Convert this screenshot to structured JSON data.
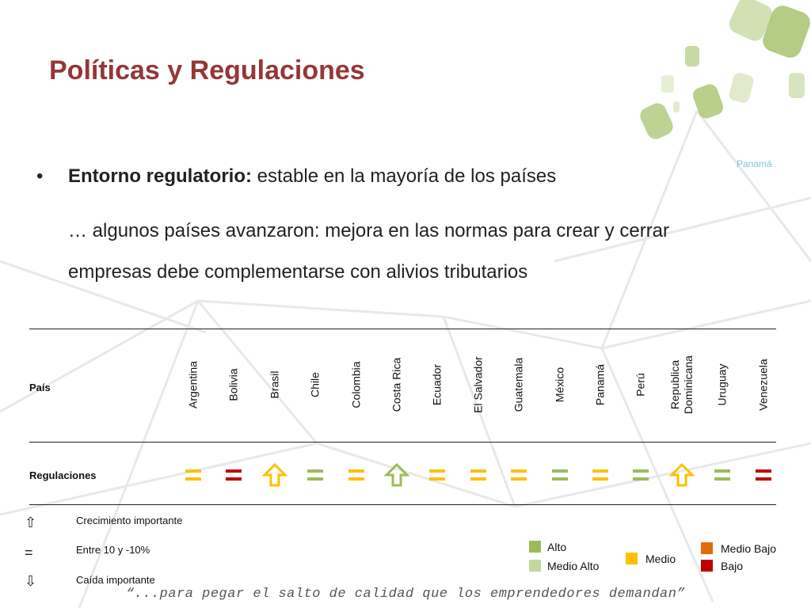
{
  "slide": {
    "title": "Políticas y Regulaciones",
    "ghost_text": "Panamá"
  },
  "bullet": {
    "marker": "•",
    "heading": "Entorno regulatorio:",
    "text": " estable en la mayoría de los países",
    "paragraph": "… algunos países avanzaron: mejora en las normas para crear y cerrar empresas debe complementarse con alivios tributarios"
  },
  "table": {
    "row_header_country": "País",
    "row_header_reg": "Regulaciones",
    "countries": [
      "Argentina",
      "Bolivia",
      "Brasil",
      "Chile",
      "Colombia",
      "Costa Rica",
      "Ecuador",
      "El Salvador",
      "Guatemala",
      "México",
      "Panamá",
      "Perú",
      "Republica Dominicana",
      "Uruguay",
      "Venezuela"
    ],
    "regulations": [
      {
        "symbol": "equal",
        "level": "Medio"
      },
      {
        "symbol": "equal",
        "level": "Bajo"
      },
      {
        "symbol": "up",
        "level": "Medio"
      },
      {
        "symbol": "equal",
        "level": "Alto"
      },
      {
        "symbol": "equal",
        "level": "Medio"
      },
      {
        "symbol": "up",
        "level": "Alto"
      },
      {
        "symbol": "equal",
        "level": "Medio"
      },
      {
        "symbol": "equal",
        "level": "Medio"
      },
      {
        "symbol": "equal",
        "level": "Medio"
      },
      {
        "symbol": "equal",
        "level": "Alto"
      },
      {
        "symbol": "equal",
        "level": "Medio"
      },
      {
        "symbol": "equal",
        "level": "Alto"
      },
      {
        "symbol": "up",
        "level": "Medio"
      },
      {
        "symbol": "equal",
        "level": "Alto"
      },
      {
        "symbol": "equal",
        "level": "Bajo"
      }
    ]
  },
  "symbol_legend": [
    {
      "glyph": "⇧",
      "text": "Crecimiento importante"
    },
    {
      "glyph": "=",
      "text": "Entre 10 y -10%"
    },
    {
      "glyph": "⇩",
      "text": "Caída importante"
    }
  ],
  "color_legend": [
    {
      "label": "Alto",
      "color": "#9bbb59"
    },
    {
      "label": "Medio Alto",
      "color": "#c3d69b"
    },
    {
      "label": "Medio",
      "color": "#ffc000"
    },
    {
      "label": "Medio Bajo",
      "color": "#e36c09"
    },
    {
      "label": "Bajo",
      "color": "#c00000"
    }
  ],
  "quote": "“...para pegar el salto de calidad que los emprendedores demandan”"
}
